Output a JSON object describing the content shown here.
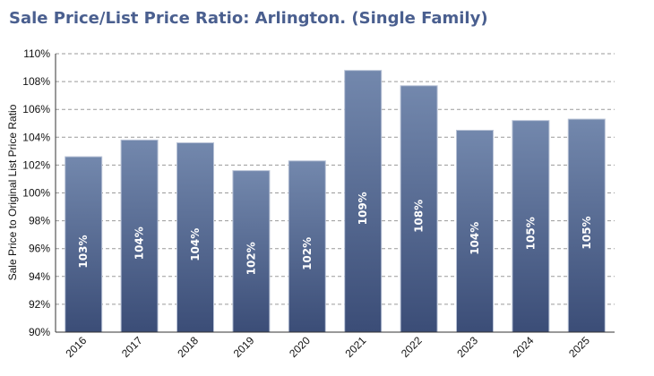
{
  "chart_data": {
    "type": "bar",
    "title": "Sale Price/List Price Ratio: Arlington. (Single Family)",
    "xlabel": "",
    "ylabel": "Sale Price to Original List Price Ratio",
    "categories": [
      "2016",
      "2017",
      "2018",
      "2019",
      "2020",
      "2021",
      "2022",
      "2023",
      "2024",
      "2025"
    ],
    "values": [
      102.6,
      103.8,
      103.6,
      101.6,
      102.3,
      108.8,
      107.7,
      104.5,
      105.2,
      105.3
    ],
    "data_labels": [
      "103%",
      "104%",
      "104%",
      "102%",
      "102%",
      "109%",
      "108%",
      "104%",
      "105%",
      "105%"
    ],
    "ylim": [
      90,
      110
    ],
    "yticks": [
      "90%",
      "92%",
      "94%",
      "96%",
      "98%",
      "100%",
      "102%",
      "104%",
      "106%",
      "108%",
      "110%"
    ],
    "grid": true,
    "colors": {
      "bar_top": "#7388ad",
      "bar_bottom": "#3b4d77",
      "title": "#4a5f8f"
    }
  }
}
